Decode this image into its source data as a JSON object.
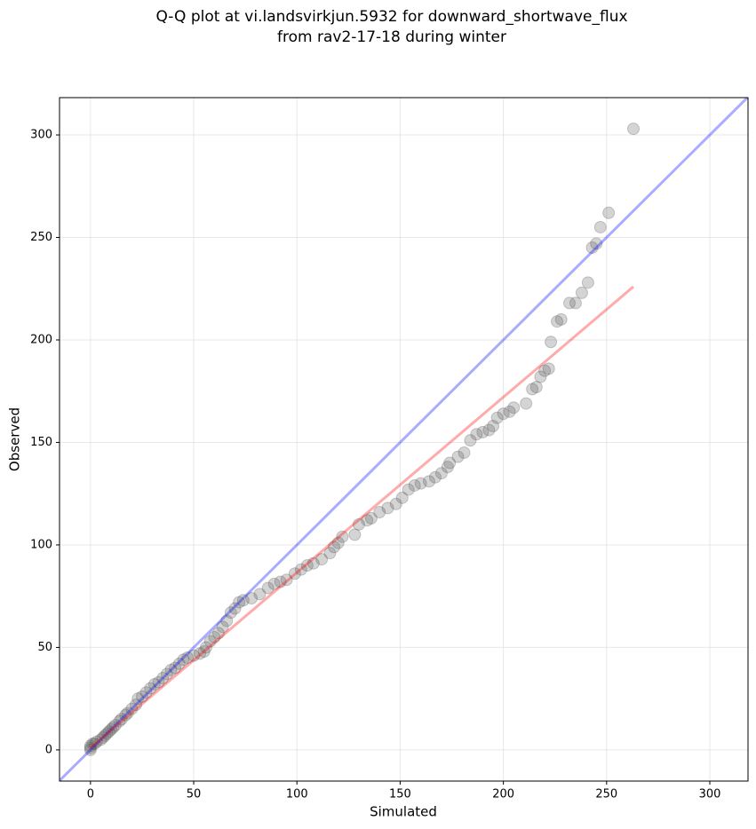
{
  "chart_data": {
    "type": "scatter",
    "title": [
      "Q-Q plot at vi.landsvirkjun.5932 for downward_shortwave_flux",
      "from rav2-17-18 during winter"
    ],
    "xlabel": "Simulated",
    "ylabel": "Observed",
    "xlim": [
      -15,
      318.5
    ],
    "ylim": [
      -15.2,
      318.2
    ],
    "xticks": [
      0,
      50,
      100,
      150,
      200,
      250,
      300
    ],
    "yticks": [
      0,
      50,
      100,
      150,
      200,
      250,
      300
    ],
    "grid": true,
    "points": {
      "color": "#555555",
      "x": [
        0,
        0,
        0,
        1,
        2,
        3,
        5,
        6,
        7,
        8,
        9,
        10,
        11,
        12,
        14,
        15,
        17,
        18,
        20,
        22,
        23,
        25,
        27,
        29,
        31,
        33,
        35,
        37,
        39,
        41,
        43,
        45,
        47,
        50,
        53,
        55,
        56,
        58,
        60,
        62,
        64,
        66,
        68,
        70,
        72,
        74,
        78,
        82,
        86,
        89,
        92,
        95,
        99,
        102,
        105,
        108,
        112,
        116,
        118,
        120,
        122,
        128,
        130,
        134,
        136,
        140,
        144,
        148,
        151,
        154,
        157,
        160,
        164,
        167,
        170,
        173,
        174,
        178,
        181,
        184,
        187,
        190,
        193,
        195,
        197,
        200,
        203,
        205,
        211,
        214,
        216,
        218,
        220,
        222,
        223,
        226,
        228,
        232,
        235,
        238,
        241,
        243,
        245,
        247,
        251,
        263
      ],
      "y": [
        0,
        1,
        2,
        3,
        3,
        4,
        5,
        6,
        7,
        8,
        9,
        10,
        11,
        12,
        14,
        15,
        17,
        18,
        20,
        22,
        25,
        26,
        28,
        30,
        32,
        33,
        35,
        37,
        39,
        40,
        42,
        44,
        45,
        46,
        47,
        48,
        50,
        53,
        55,
        57,
        60,
        63,
        67,
        69,
        72,
        73,
        74,
        76,
        79,
        81,
        82,
        83,
        86,
        88,
        90,
        91,
        93,
        96,
        99,
        101,
        104,
        105,
        110,
        112,
        113,
        116,
        118,
        120,
        123,
        127,
        129,
        130,
        131,
        133,
        135,
        138,
        140,
        143,
        145,
        151,
        154,
        155,
        156,
        158,
        162,
        164,
        165,
        167,
        169,
        176,
        177,
        182,
        185,
        186,
        199,
        209,
        210,
        218,
        218,
        223,
        228,
        245,
        247,
        255,
        262,
        303
      ]
    },
    "lines": [
      {
        "color": "#0000ff",
        "x": [
          -15,
          318.5
        ],
        "y": [
          -15,
          318.5
        ]
      },
      {
        "color": "#ff0000",
        "x": [
          0,
          263
        ],
        "y": [
          1,
          226
        ]
      }
    ]
  }
}
